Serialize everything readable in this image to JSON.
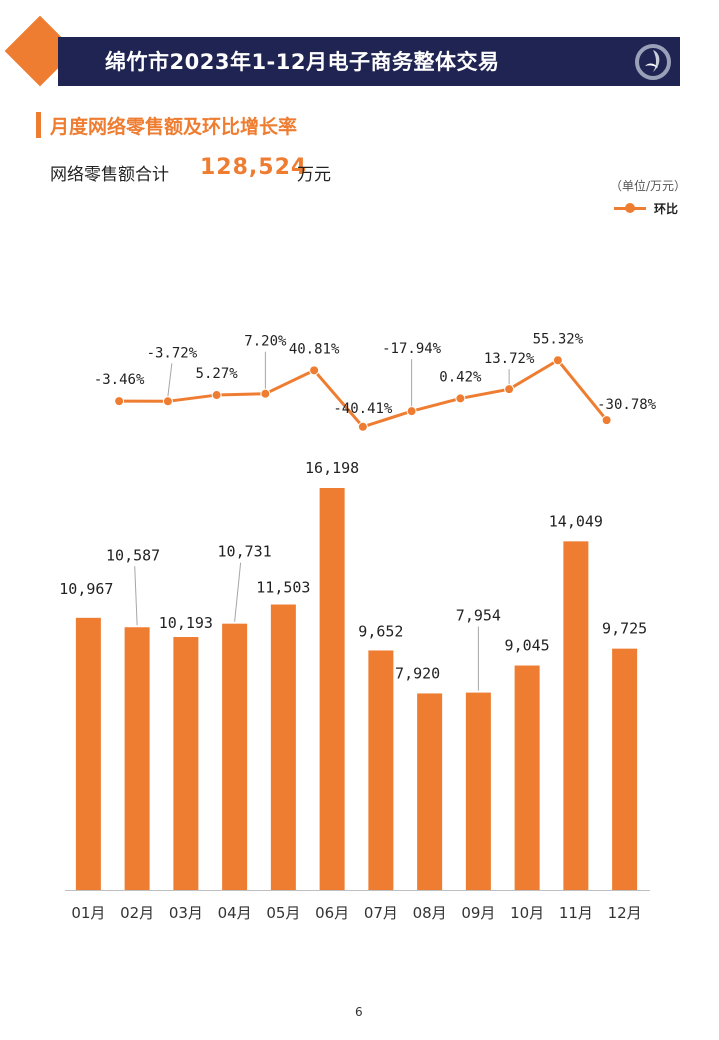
{
  "header": {
    "title": "绵竹市2023年1-12月电子商务整体交易"
  },
  "section": {
    "title": "月度网络零售额及环比增长率"
  },
  "summary": {
    "label": "网络零售额合计",
    "value": "128,524",
    "unit": "万元"
  },
  "unit_note": "（单位/万元）",
  "legend": {
    "label": "环比"
  },
  "colors": {
    "accent": "#ee7d31",
    "banner": "#1f2452",
    "axis": "#bfbfbf"
  },
  "icons": {
    "logo": "company-logo-icon",
    "diamond": "diamond-icon"
  },
  "chart_data": [
    {
      "type": "bar",
      "title": "月度网络零售额",
      "categories": [
        "01月",
        "02月",
        "03月",
        "04月",
        "05月",
        "06月",
        "07月",
        "08月",
        "09月",
        "10月",
        "11月",
        "12月"
      ],
      "values": [
        10967,
        10587,
        10193,
        10731,
        11503,
        16198,
        9652,
        7920,
        7954,
        9045,
        14049,
        9725
      ],
      "labels": [
        "10,967",
        "10,587",
        "10,193",
        "10,731",
        "11,503",
        "16,198",
        "9,652",
        "7,920",
        "7,954",
        "9,045",
        "14,049",
        "9,725"
      ],
      "ylim": [
        0,
        16198
      ],
      "unit": "万元"
    },
    {
      "type": "line",
      "title": "环比",
      "categories": [
        "01月",
        "02月",
        "03月",
        "04月",
        "05月",
        "06月",
        "07月",
        "08月",
        "09月",
        "10月",
        "11月",
        "12月"
      ],
      "values": [
        -3.46,
        -3.72,
        5.27,
        7.2,
        40.81,
        -40.41,
        -17.94,
        0.42,
        13.72,
        55.32,
        -30.78
      ],
      "labels": [
        "-3.46%",
        "-3.72%",
        "5.27%",
        "7.20%",
        "40.81%",
        "-40.41%",
        "-17.94%",
        "0.42%",
        "13.72%",
        "55.32%",
        "-30.78%"
      ],
      "note": "The line has 11 points, plotted at months 02 through 12.",
      "ylim": [
        -45,
        60
      ]
    }
  ],
  "page_number": "6"
}
